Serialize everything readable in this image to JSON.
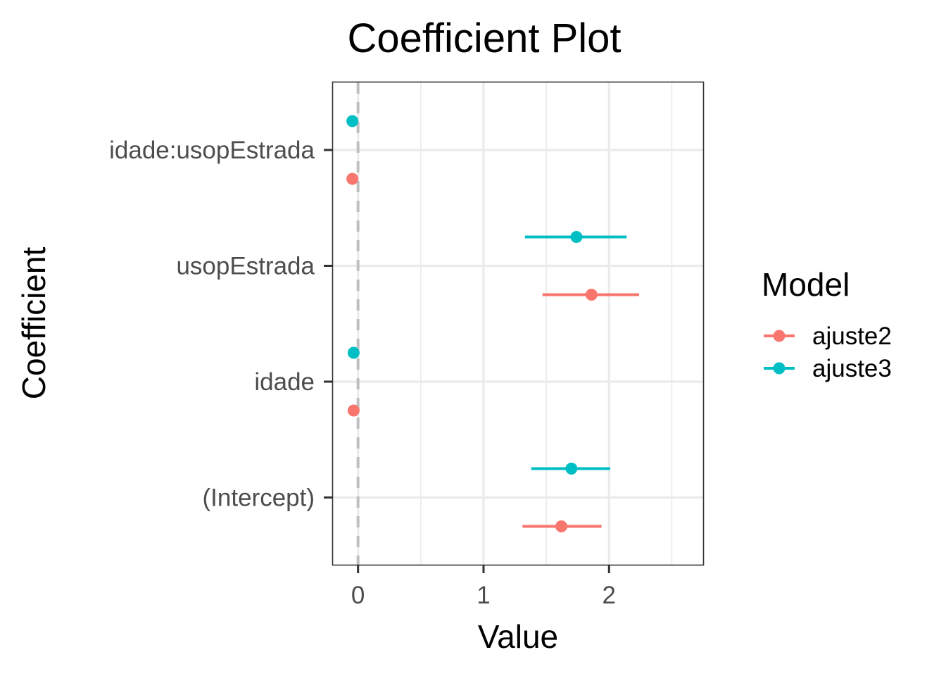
{
  "chart_data": {
    "type": "scatter",
    "title": "Coefficient Plot",
    "xlabel": "Value",
    "ylabel": "Coefficient",
    "xlim": [
      -0.2,
      2.75
    ],
    "x_ticks": [
      0,
      1,
      2
    ],
    "x_tick_labels": [
      "0",
      "1",
      "2"
    ],
    "reference_line": {
      "x": 0,
      "style": "dashed",
      "color": "#bfbfbf"
    },
    "categories": [
      "idade:usopEstrada",
      "usopEstrada",
      "idade",
      "(Intercept)"
    ],
    "grid": true,
    "legend": {
      "title": "Model",
      "placement": "right"
    },
    "series": [
      {
        "name": "ajuste2",
        "color": "#f8766d",
        "points": [
          {
            "category": "idade:usopEstrada",
            "value": -0.045,
            "low": -0.05,
            "high": -0.04
          },
          {
            "category": "usopEstrada",
            "value": 1.86,
            "low": 1.47,
            "high": 2.24
          },
          {
            "category": "idade",
            "value": -0.035,
            "low": -0.04,
            "high": -0.03
          },
          {
            "category": "(Intercept)",
            "value": 1.62,
            "low": 1.31,
            "high": 1.94
          }
        ]
      },
      {
        "name": "ajuste3",
        "color": "#00bfc4",
        "points": [
          {
            "category": "idade:usopEstrada",
            "value": -0.045,
            "low": -0.05,
            "high": -0.04
          },
          {
            "category": "usopEstrada",
            "value": 1.74,
            "low": 1.33,
            "high": 2.14
          },
          {
            "category": "idade",
            "value": -0.035,
            "low": -0.04,
            "high": -0.03
          },
          {
            "category": "(Intercept)",
            "value": 1.7,
            "low": 1.38,
            "high": 2.01
          }
        ]
      }
    ]
  }
}
